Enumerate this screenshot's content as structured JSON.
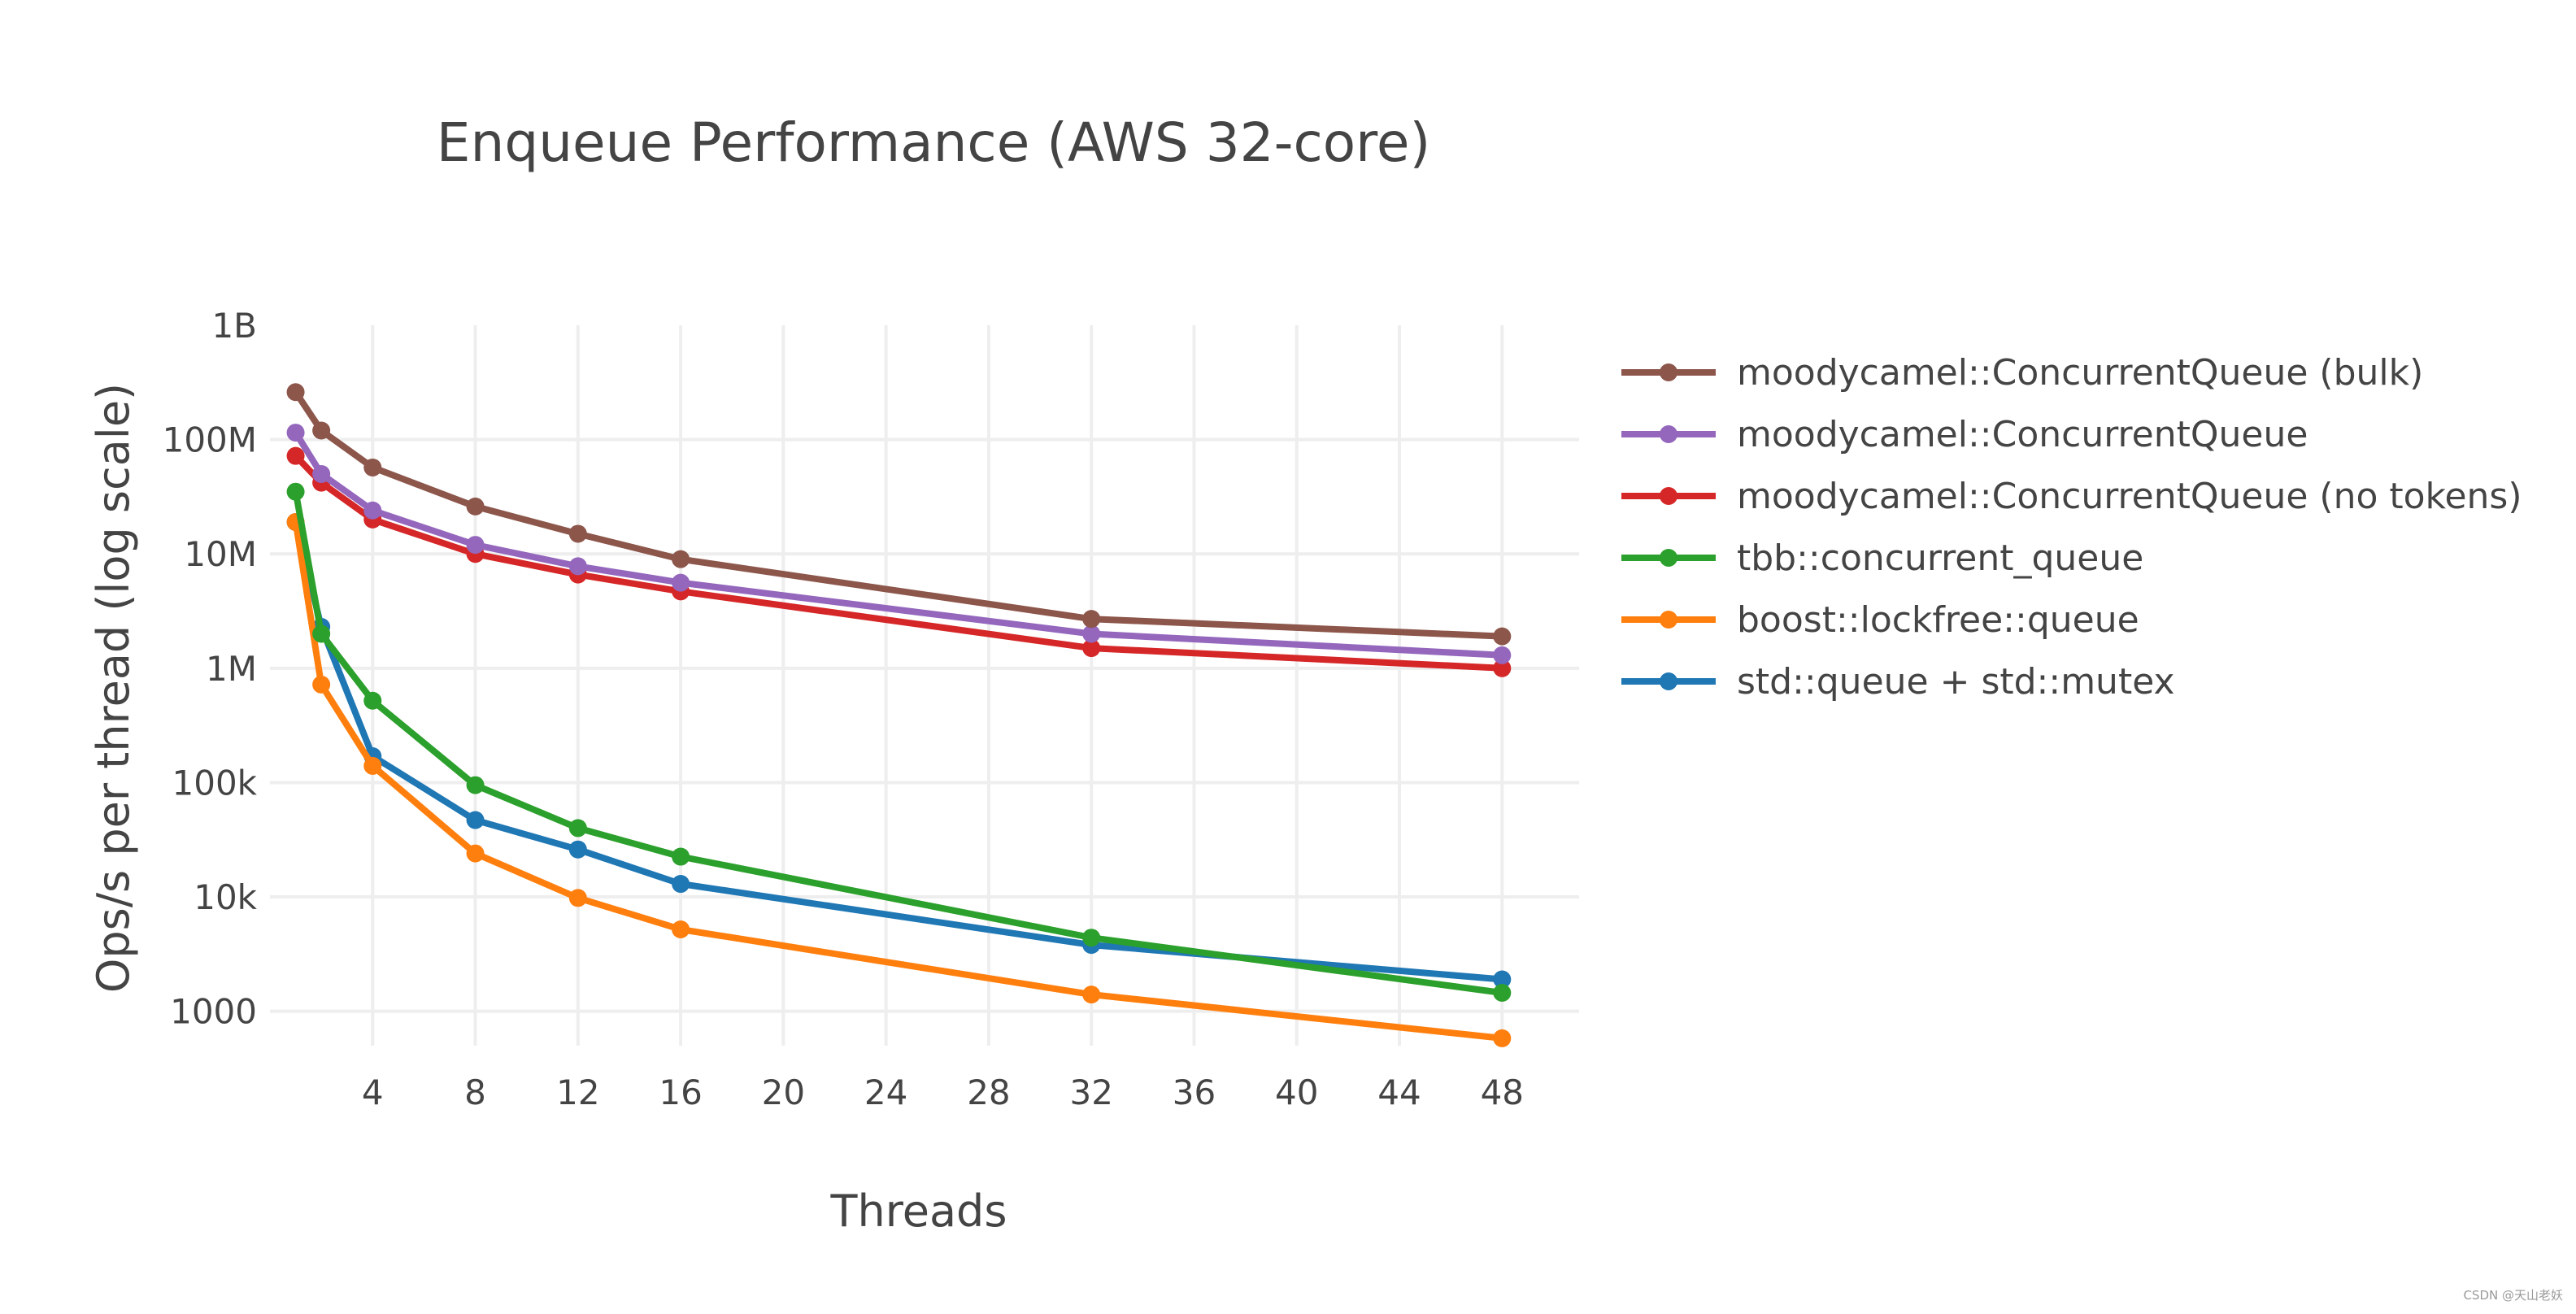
{
  "chart_data": {
    "type": "line",
    "title": "Enqueue Performance (AWS 32-core)",
    "xlabel": "Threads",
    "ylabel": "Ops/s per thread (log scale)",
    "xlim": [
      0,
      51
    ],
    "ylim": [
      500,
      1000000000
    ],
    "yscale": "log",
    "x_ticks": [
      4,
      8,
      12,
      16,
      20,
      24,
      28,
      32,
      36,
      40,
      44,
      48
    ],
    "x_tick_labels": [
      "4",
      "8",
      "12",
      "16",
      "20",
      "24",
      "28",
      "32",
      "36",
      "40",
      "44",
      "48"
    ],
    "y_ticks": [
      1000,
      10000,
      100000,
      1000000,
      10000000,
      100000000,
      1000000000
    ],
    "y_tick_labels": [
      "1000",
      "10k",
      "100k",
      "1M",
      "10M",
      "100M",
      "1B"
    ],
    "grid": true,
    "legend_position": "right",
    "x": [
      1,
      2,
      4,
      8,
      12,
      16,
      32,
      48
    ],
    "series": [
      {
        "name": "moodycamel::ConcurrentQueue (bulk)",
        "color": "#8c564b",
        "values": [
          260000000,
          120000000,
          57000000,
          26000000,
          15000000,
          9000000,
          2700000,
          1900000
        ]
      },
      {
        "name": "moodycamel::ConcurrentQueue",
        "color": "#9467bd",
        "values": [
          115000000,
          50000000,
          24000000,
          12000000,
          7800000,
          5600000,
          2000000,
          1300000
        ]
      },
      {
        "name": "moodycamel::ConcurrentQueue (no tokens)",
        "color": "#d62728",
        "values": [
          72000000,
          42000000,
          20000000,
          10000000,
          6600000,
          4700000,
          1500000,
          1000000
        ]
      },
      {
        "name": "tbb::concurrent_queue",
        "color": "#2ca02c",
        "values": [
          35000000,
          2000000,
          520000,
          95000,
          40000,
          22500,
          4400,
          1450
        ]
      },
      {
        "name": "boost::lockfree::queue",
        "color": "#ff7f0e",
        "values": [
          19000000,
          720000,
          140000,
          24000,
          9800,
          5200,
          1400,
          580
        ]
      },
      {
        "name": "std::queue + std::mutex",
        "color": "#1f77b4",
        "values": [
          19000000,
          2300000,
          170000,
          47000,
          26000,
          13000,
          3800,
          1900
        ]
      }
    ]
  },
  "watermark": "CSDN @天山老妖"
}
